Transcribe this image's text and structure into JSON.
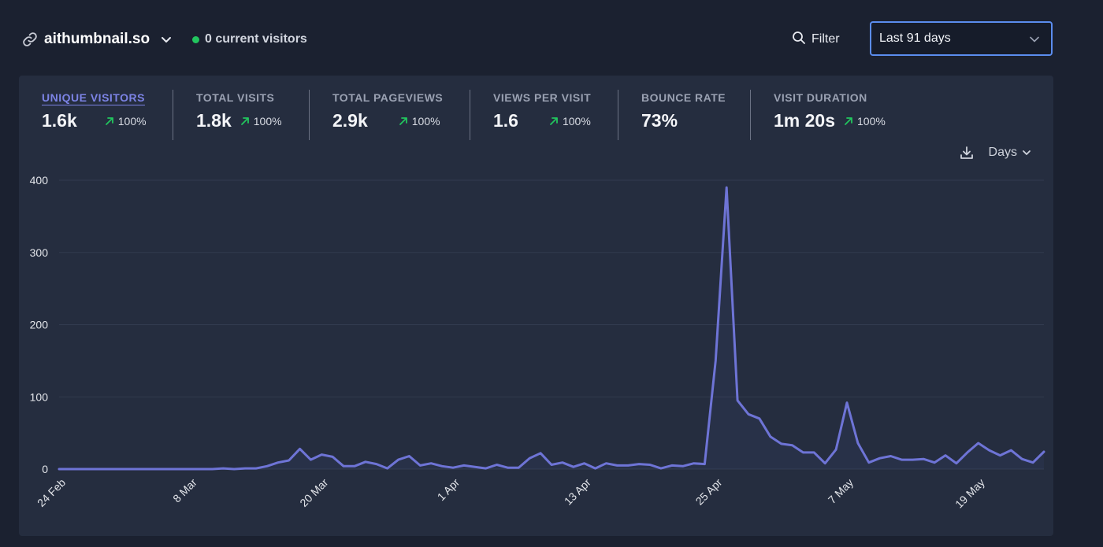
{
  "header": {
    "site_name": "aithumbnail.so",
    "current_visitors": "0 current visitors",
    "filter_label": "Filter",
    "period_label": "Last 91 days"
  },
  "metrics": [
    {
      "label": "UNIQUE VISITORS",
      "value": "1.6k",
      "change": "100%"
    },
    {
      "label": "TOTAL VISITS",
      "value": "1.8k",
      "change": "100%"
    },
    {
      "label": "TOTAL PAGEVIEWS",
      "value": "2.9k",
      "change": "100%"
    },
    {
      "label": "VIEWS PER VISIT",
      "value": "1.6",
      "change": "100%"
    },
    {
      "label": "BOUNCE RATE",
      "value": "73%"
    },
    {
      "label": "VISIT DURATION",
      "value": "1m 20s",
      "change": "100%"
    }
  ],
  "chart_controls": {
    "interval_label": "Days"
  },
  "colors": {
    "accent": "#6e74d6",
    "positive": "#22c55e",
    "live": "#22c55e",
    "focus_border": "#5b8def"
  },
  "icons": [
    "link-icon",
    "chevron-down-icon",
    "search-icon",
    "arrow-up-right-icon",
    "download-icon"
  ],
  "chart_data": {
    "type": "line",
    "title": "",
    "xlabel": "",
    "ylabel": "",
    "ylim": [
      0,
      400
    ],
    "yticks": [
      0,
      100,
      200,
      300,
      400
    ],
    "x_tick_labels": [
      "24 Feb",
      "8 Mar",
      "20 Mar",
      "1 Apr",
      "13 Apr",
      "25 Apr",
      "7 May",
      "19 May"
    ],
    "grid": true,
    "series": [
      {
        "values": [
          0,
          0,
          0,
          0,
          0,
          0,
          0,
          0,
          0,
          0,
          0,
          0,
          0,
          0,
          0,
          1,
          0,
          1,
          1,
          4,
          9,
          12,
          28,
          13,
          20,
          17,
          4,
          4,
          10,
          7,
          1,
          13,
          18,
          5,
          8,
          4,
          2,
          5,
          3,
          1,
          6,
          2,
          2,
          15,
          22,
          6,
          9,
          3,
          8,
          1,
          8,
          5,
          5,
          7,
          6,
          1,
          5,
          4,
          8,
          7,
          150,
          390,
          95,
          76,
          70,
          45,
          35,
          33,
          23,
          23,
          8,
          27,
          92,
          36,
          9,
          15,
          18,
          13,
          13,
          14,
          9,
          19,
          8,
          23,
          36,
          26,
          19,
          26,
          14,
          9,
          24
        ]
      }
    ]
  }
}
